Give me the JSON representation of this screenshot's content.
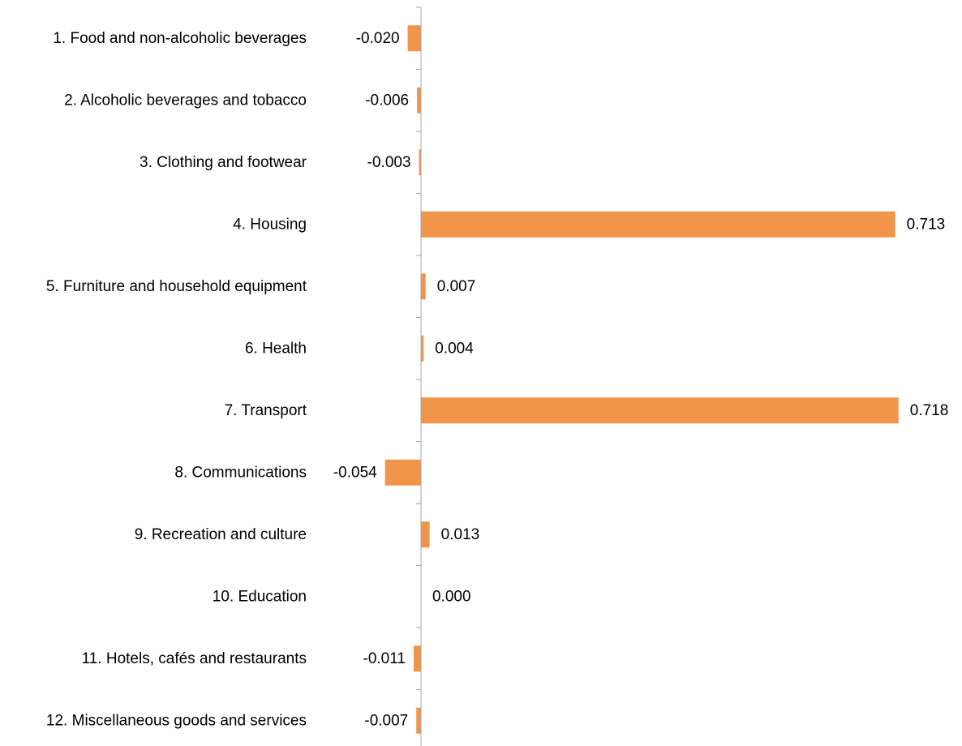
{
  "chart_data": {
    "type": "bar",
    "orientation": "horizontal",
    "categories": [
      "1. Food and non-alcoholic beverages",
      "2. Alcoholic beverages and tobacco",
      "3. Clothing and footwear",
      "4. Housing",
      "5. Furniture and household equipment",
      "6. Health",
      "7. Transport",
      "8. Communications",
      "9. Recreation and culture",
      "10. Education",
      "11. Hotels, cafés and restaurants",
      "12. Miscellaneous goods and services"
    ],
    "values": [
      -0.02,
      -0.006,
      -0.003,
      0.713,
      0.007,
      0.004,
      0.718,
      -0.054,
      0.013,
      0.0,
      -0.011,
      -0.007
    ],
    "value_labels": [
      "-0.020",
      "-0.006",
      "-0.003",
      "0.713",
      "0.007",
      "0.004",
      "0.718",
      "-0.054",
      "0.013",
      "0.000",
      "-0.011",
      "-0.007"
    ],
    "bar_color": "#f0954a",
    "axis_color": "#a6a6a6",
    "grid": false,
    "legend": "none"
  }
}
